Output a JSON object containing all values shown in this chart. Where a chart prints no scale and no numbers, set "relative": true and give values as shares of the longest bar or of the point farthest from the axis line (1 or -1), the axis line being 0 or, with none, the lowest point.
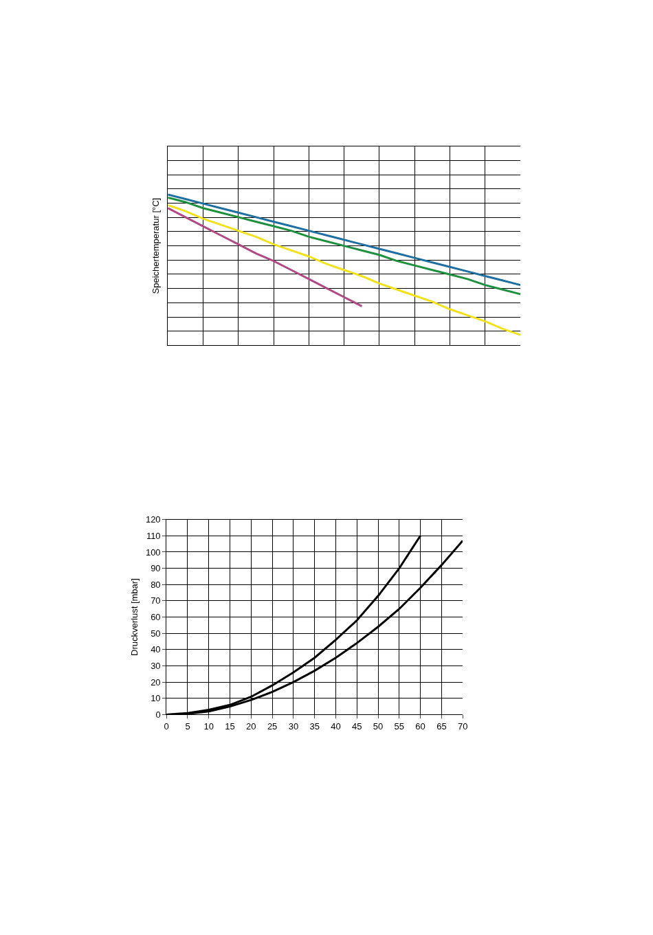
{
  "chart_data": [
    {
      "type": "line",
      "ylabel": "Speichertemperatur [°C]",
      "relative": true,
      "grid": true,
      "tick_labels": false,
      "line_style": "solid",
      "marker": "none",
      "categories": [
        null,
        null,
        null,
        null,
        null,
        null,
        null,
        null,
        null,
        null,
        null,
        null,
        null,
        null,
        null,
        null,
        null,
        null,
        null,
        null,
        null
      ],
      "series": [
        {
          "color": "#1f6fa0",
          "values": [
            1.0,
            0.97,
            0.94,
            0.91,
            0.88,
            0.85,
            0.82,
            0.79,
            0.76,
            0.73,
            0.7,
            0.67,
            0.64,
            0.61,
            0.58,
            0.55,
            0.52,
            0.49,
            0.46,
            0.43,
            0.4
          ]
        },
        {
          "color": "#1e9040",
          "values": [
            0.98,
            0.95,
            0.91,
            0.88,
            0.85,
            0.82,
            0.79,
            0.76,
            0.72,
            0.69,
            0.66,
            0.63,
            0.6,
            0.56,
            0.53,
            0.5,
            0.47,
            0.44,
            0.4,
            0.37,
            0.34
          ]
        },
        {
          "color": "#f2e21e",
          "values": [
            0.93,
            0.89,
            0.84,
            0.8,
            0.76,
            0.72,
            0.67,
            0.63,
            0.59,
            0.54,
            0.5,
            0.46,
            0.41,
            0.37,
            0.33,
            0.29,
            0.24,
            0.2,
            0.16,
            0.11,
            0.07
          ]
        },
        {
          "color": "#b04a86",
          "values": [
            0.91,
            0.85,
            0.79,
            0.73,
            0.67,
            0.61,
            0.56,
            0.5,
            0.44,
            0.38,
            0.32,
            0.26,
            null,
            null,
            null,
            null,
            null,
            null,
            null,
            null,
            null
          ]
        }
      ]
    },
    {
      "type": "line",
      "ylabel": "Druckverlust [mbar]",
      "grid": true,
      "line_style": "solid",
      "marker": "none",
      "xlim": [
        0,
        70
      ],
      "xticks": [
        0,
        5,
        10,
        15,
        20,
        25,
        30,
        35,
        40,
        45,
        50,
        55,
        60,
        65,
        70
      ],
      "ylim": [
        0,
        120
      ],
      "yticks": [
        0,
        10,
        20,
        30,
        40,
        50,
        60,
        70,
        80,
        90,
        100,
        110,
        120
      ],
      "series": [
        {
          "color": "#000000",
          "x": [
            0,
            5,
            10,
            15,
            20,
            25,
            30,
            35,
            40,
            45,
            50,
            55,
            60
          ],
          "values": [
            0,
            1,
            3,
            6,
            11,
            18,
            26,
            35,
            46,
            58,
            73,
            90,
            110
          ]
        },
        {
          "color": "#000000",
          "x": [
            0,
            5,
            10,
            15,
            20,
            25,
            30,
            35,
            40,
            45,
            50,
            55,
            60,
            65,
            70
          ],
          "values": [
            0,
            0.5,
            2,
            5,
            9,
            14,
            20,
            27,
            35,
            44,
            54,
            65,
            78,
            92,
            107
          ]
        }
      ]
    }
  ]
}
